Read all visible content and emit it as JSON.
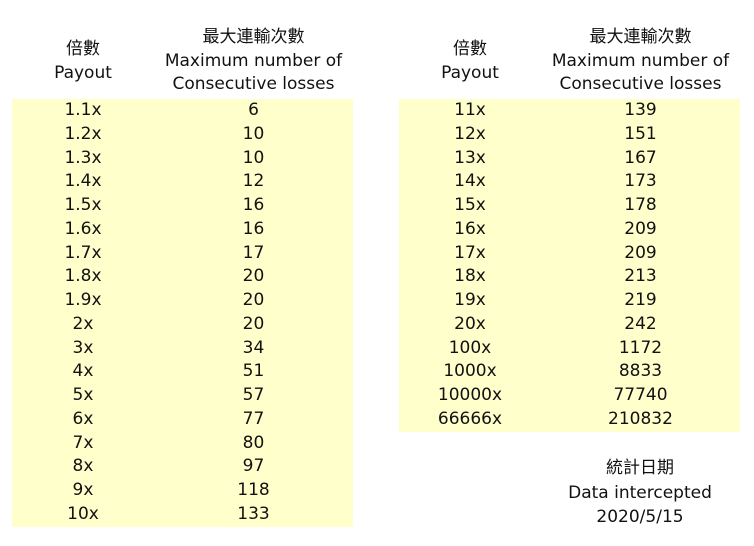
{
  "headers": {
    "payout_zh": "倍數",
    "payout_en": "Payout",
    "losses_zh": "最大連輸次數",
    "losses_en1": "Maximum number of",
    "losses_en2": "Consecutive losses"
  },
  "left_table": [
    [
      "1.1x",
      "6"
    ],
    [
      "1.2x",
      "10"
    ],
    [
      "1.3x",
      "10"
    ],
    [
      "1.4x",
      "12"
    ],
    [
      "1.5x",
      "16"
    ],
    [
      "1.6x",
      "16"
    ],
    [
      "1.7x",
      "17"
    ],
    [
      "1.8x",
      "20"
    ],
    [
      "1.9x",
      "20"
    ],
    [
      "2x",
      "20"
    ],
    [
      "3x",
      "34"
    ],
    [
      "4x",
      "51"
    ],
    [
      "5x",
      "57"
    ],
    [
      "6x",
      "77"
    ],
    [
      "7x",
      "80"
    ],
    [
      "8x",
      "97"
    ],
    [
      "9x",
      "118"
    ],
    [
      "10x",
      "133"
    ]
  ],
  "right_table": [
    [
      "11x",
      "139"
    ],
    [
      "12x",
      "151"
    ],
    [
      "13x",
      "167"
    ],
    [
      "14x",
      "173"
    ],
    [
      "15x",
      "178"
    ],
    [
      "16x",
      "209"
    ],
    [
      "17x",
      "209"
    ],
    [
      "18x",
      "213"
    ],
    [
      "19x",
      "219"
    ],
    [
      "20x",
      "242"
    ],
    [
      "100x",
      "1172"
    ],
    [
      "1000x",
      "8833"
    ],
    [
      "10000x",
      "77740"
    ],
    [
      "66666x",
      "210832"
    ]
  ],
  "note": {
    "zh": "統計日期",
    "en": "Data intercepted",
    "date": "2020/5/15"
  },
  "colors": {
    "row_background": "#ffffcc"
  }
}
